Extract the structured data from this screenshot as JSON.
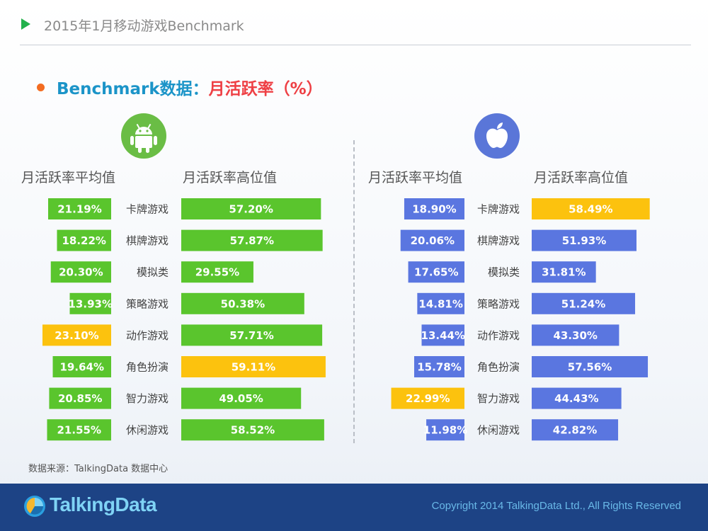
{
  "header": {
    "title": "2015年1月移动游戏Benchmark"
  },
  "subtitle": {
    "prefix": "Benchmark数据：",
    "metric": "月活跃率（%）"
  },
  "icons": {
    "android": "android-icon",
    "apple": "apple-icon"
  },
  "colors": {
    "android_bar": "#5ac52d",
    "ios_bar": "#5a76e0",
    "highlight": "#fcc20e"
  },
  "columns": {
    "android_avg": "月活跃率平均值",
    "android_high": "月活跃率高位值",
    "ios_avg": "月活跃率平均值",
    "ios_high": "月活跃率高位值"
  },
  "chart_data": [
    {
      "type": "bar",
      "platform": "Android",
      "categories": [
        "卡牌游戏",
        "棋牌游戏",
        "模拟类",
        "策略游戏",
        "动作游戏",
        "角色扮演",
        "智力游戏",
        "休闲游戏"
      ],
      "series": [
        {
          "name": "月活跃率平均值",
          "values": [
            21.19,
            18.22,
            20.3,
            13.93,
            23.1,
            19.64,
            20.85,
            21.55
          ],
          "labels": [
            "21.19%",
            "18.22%",
            "20.30%",
            "13.93%",
            "23.10%",
            "19.64%",
            "20.85%",
            "21.55%"
          ],
          "highlight_index": 4
        },
        {
          "name": "月活跃率高位值",
          "values": [
            57.2,
            57.87,
            29.55,
            50.38,
            57.71,
            59.11,
            49.05,
            58.52
          ],
          "labels": [
            "57.20%",
            "57.87%",
            "29.55%",
            "50.38%",
            "57.71%",
            "59.11%",
            "49.05%",
            "58.52%"
          ],
          "highlight_index": 5
        }
      ]
    },
    {
      "type": "bar",
      "platform": "iOS",
      "categories": [
        "卡牌游戏",
        "棋牌游戏",
        "模拟类",
        "策略游戏",
        "动作游戏",
        "角色扮演",
        "智力游戏",
        "休闲游戏"
      ],
      "series": [
        {
          "name": "月活跃率平均值",
          "values": [
            18.9,
            20.06,
            17.65,
            14.81,
            13.44,
            15.78,
            22.99,
            11.98
          ],
          "labels": [
            "18.90%",
            "20.06%",
            "17.65%",
            "14.81%",
            "13.44%",
            "15.78%",
            "22.99%",
            "11.98%"
          ],
          "highlight_index": 6
        },
        {
          "name": "月活跃率高位值",
          "values": [
            58.49,
            51.93,
            31.81,
            51.24,
            43.3,
            57.56,
            44.43,
            42.82
          ],
          "labels": [
            "58.49%",
            "51.93%",
            "31.81%",
            "51.24%",
            "43.30%",
            "57.56%",
            "44.43%",
            "42.82%"
          ],
          "highlight_index": 0
        }
      ]
    }
  ],
  "source": "数据来源：TalkingData 数据中心",
  "footer": {
    "logo": "TalkingData",
    "copyright": "Copyright 2014 TalkingData Ltd., All Rights Reserved"
  }
}
